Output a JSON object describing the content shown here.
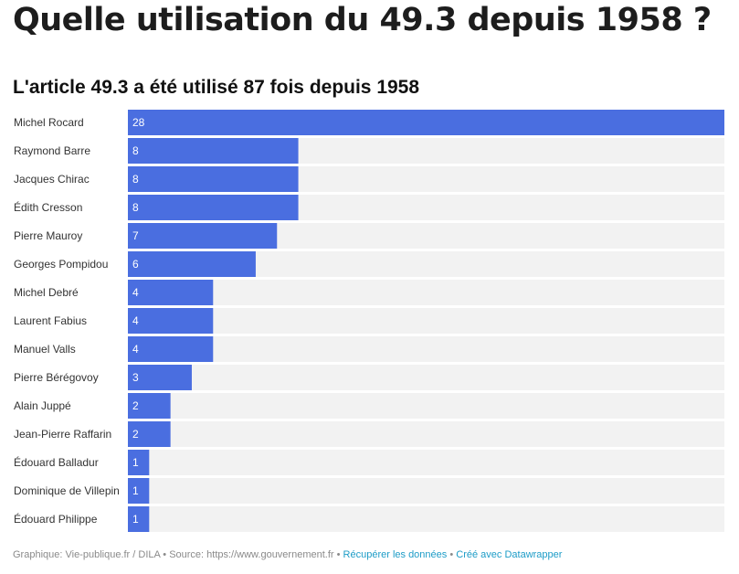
{
  "page": {
    "title": "Quelle utilisation du 49.3 depuis 1958 ?"
  },
  "chart_data": {
    "type": "bar",
    "orientation": "horizontal",
    "title": "L'article 49.3 a été utilisé 87 fois depuis 1958",
    "categories": [
      "Michel Rocard",
      "Raymond Barre",
      "Jacques Chirac",
      "Édith Cresson",
      "Pierre Mauroy",
      "Georges Pompidou",
      "Michel Debré",
      "Laurent Fabius",
      "Manuel Valls",
      "Pierre Bérégovoy",
      "Alain Juppé",
      "Jean-Pierre Raffarin",
      "Édouard Balladur",
      "Dominique de Villepin",
      "Édouard Philippe"
    ],
    "values": [
      28,
      8,
      8,
      8,
      7,
      6,
      4,
      4,
      4,
      3,
      2,
      2,
      1,
      1,
      1
    ],
    "xlim": [
      0,
      28
    ],
    "bar_color": "#4a6ee0",
    "track_color": "#f2f2f2",
    "data_labels": true,
    "grid": false,
    "legend": "none"
  },
  "footer": {
    "source": "Graphique: Vie-publique.fr / DILA • Source: https://www.gouvernement.fr •",
    "get_data": "Récupérer les données",
    "separator": "•",
    "created_with": "Créé avec Datawrapper"
  }
}
